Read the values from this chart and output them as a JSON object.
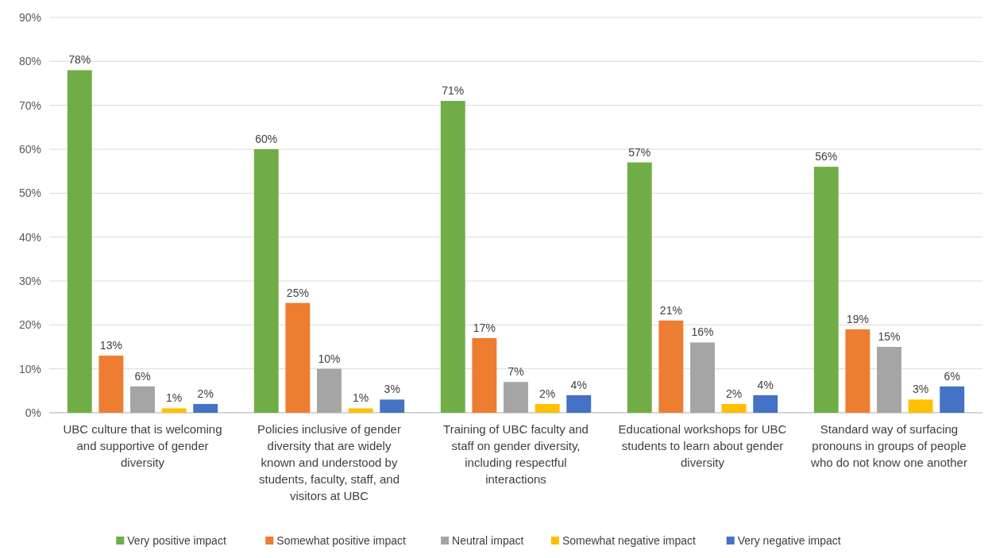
{
  "chart_data": {
    "type": "bar",
    "categories": [
      "UBC culture that is welcoming and supportive of gender diversity",
      "Policies inclusive of gender diversity that are widely known and understood by students, faculty, staff, and visitors at UBC",
      "Training of UBC faculty and staff on gender diversity, including respectful interactions",
      "Educational workshops for UBC students to learn about gender diversity",
      "Standard way of surfacing pronouns in groups of people who do not know one another"
    ],
    "series": [
      {
        "name": "Very positive impact",
        "color": "#70ad47",
        "values": [
          78,
          60,
          71,
          57,
          56
        ],
        "value_labels": [
          "78%",
          "60%",
          "71%",
          "57%",
          "56%"
        ]
      },
      {
        "name": "Somewhat positive impact",
        "color": "#ed7d31",
        "values": [
          13,
          25,
          17,
          21,
          19
        ],
        "value_labels": [
          "13%",
          "25%",
          "17%",
          "21%",
          "19%"
        ]
      },
      {
        "name": "Neutral impact",
        "color": "#a5a5a5",
        "values": [
          6,
          10,
          7,
          16,
          15
        ],
        "value_labels": [
          "6%",
          "10%",
          "7%",
          "16%",
          "15%"
        ]
      },
      {
        "name": "Somewhat negative impact",
        "color": "#ffc000",
        "values": [
          1,
          1,
          2,
          2,
          3
        ],
        "value_labels": [
          "1%",
          "1%",
          "2%",
          "2%",
          "3%"
        ]
      },
      {
        "name": "Very negative impact",
        "color": "#4472c4",
        "values": [
          2,
          3,
          4,
          4,
          6
        ],
        "value_labels": [
          "2%",
          "3%",
          "4%",
          "4%",
          "6%"
        ]
      }
    ],
    "ylim": [
      0,
      90
    ],
    "yticks": [
      {
        "value": 0,
        "label": "0%"
      },
      {
        "value": 10,
        "label": "10%"
      },
      {
        "value": 20,
        "label": "20%"
      },
      {
        "value": 30,
        "label": "30%"
      },
      {
        "value": 40,
        "label": "40%"
      },
      {
        "value": 50,
        "label": "50%"
      },
      {
        "value": 60,
        "label": "60%"
      },
      {
        "value": 70,
        "label": "70%"
      },
      {
        "value": 80,
        "label": "80%"
      },
      {
        "value": 90,
        "label": "90%"
      }
    ],
    "grid": "y",
    "legend": "bottom"
  }
}
